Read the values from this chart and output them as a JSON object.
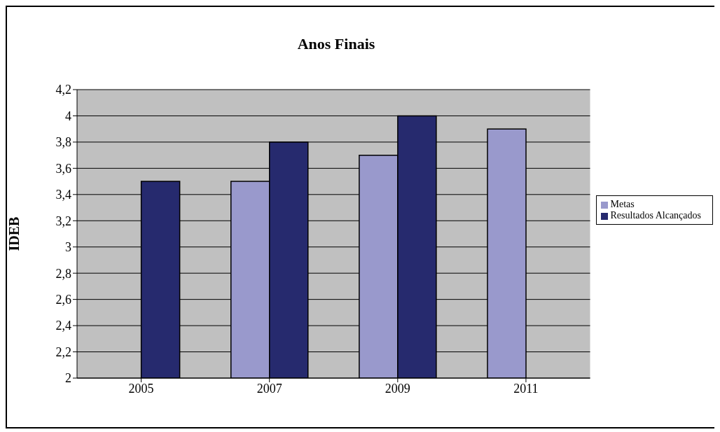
{
  "chart_data": {
    "type": "bar",
    "title": "Anos Finais",
    "ylabel": "IDEB",
    "categories": [
      "2005",
      "2007",
      "2009",
      "2011"
    ],
    "series": [
      {
        "name": "Metas",
        "color": "#9999cc",
        "values": [
          null,
          3.5,
          3.7,
          3.9
        ]
      },
      {
        "name": "Resultados Alcançados",
        "color": "#262a6e",
        "values": [
          3.5,
          3.8,
          4.0,
          null
        ]
      }
    ],
    "ylim": [
      2,
      4.2
    ],
    "yticks": [
      2,
      {
        "value": 2.2,
        "label": "2,2"
      },
      {
        "value": 2.4,
        "label": "2,4"
      },
      {
        "value": 2.6,
        "label": "2,6"
      },
      {
        "value": 2.8,
        "label": "2,8"
      },
      3,
      {
        "value": 3.2,
        "label": "3,2"
      },
      {
        "value": 3.4,
        "label": "3,4"
      },
      {
        "value": 3.6,
        "label": "3,6"
      },
      {
        "value": 3.8,
        "label": "3,8"
      },
      4,
      {
        "value": 4.2,
        "label": "4,2"
      }
    ],
    "grid": "y",
    "legend": "right"
  }
}
